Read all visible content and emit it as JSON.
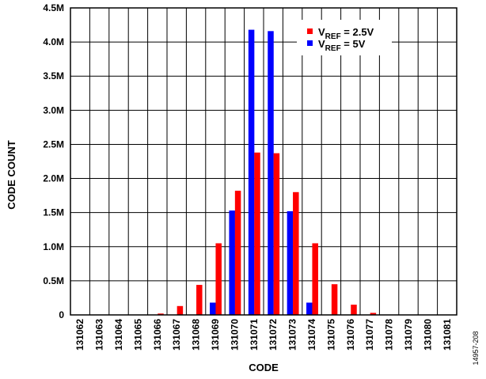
{
  "chart_data": {
    "type": "bar",
    "xlabel": "CODE",
    "ylabel": "CODE COUNT",
    "categories": [
      "131062",
      "131063",
      "131064",
      "131065",
      "131066",
      "131067",
      "131068",
      "131069",
      "131070",
      "131071",
      "131072",
      "131073",
      "131074",
      "131075",
      "131076",
      "131077",
      "131078",
      "131079",
      "131080",
      "131081"
    ],
    "ylim": [
      0,
      4500000
    ],
    "yticks": [
      {
        "value": 0,
        "label": "0"
      },
      {
        "value": 500000,
        "label": "0.5M"
      },
      {
        "value": 1000000,
        "label": "1.0M"
      },
      {
        "value": 1500000,
        "label": "1.5M"
      },
      {
        "value": 2000000,
        "label": "2.0M"
      },
      {
        "value": 2500000,
        "label": "2.5M"
      },
      {
        "value": 3000000,
        "label": "3.0M"
      },
      {
        "value": 3500000,
        "label": "3.5M"
      },
      {
        "value": 4000000,
        "label": "4.0M"
      },
      {
        "value": 4500000,
        "label": "4.5M"
      }
    ],
    "grid": true,
    "legend_position": "top-right",
    "series": [
      {
        "name": "V_REF = 5V",
        "legend": {
          "main": "V",
          "sub": "REF",
          "rest": " = 5V"
        },
        "color": "#0000ff",
        "values": [
          0,
          0,
          0,
          0,
          0,
          0,
          0,
          180000,
          1530000,
          4180000,
          4160000,
          1520000,
          180000,
          0,
          0,
          0,
          0,
          0,
          0,
          0
        ]
      },
      {
        "name": "V_REF = 2.5V",
        "legend": {
          "main": "V",
          "sub": "REF",
          "rest": " = 2.5V"
        },
        "color": "#ff0000",
        "values": [
          0,
          0,
          0,
          5000,
          20000,
          130000,
          440000,
          1050000,
          1820000,
          2380000,
          2370000,
          1800000,
          1050000,
          450000,
          150000,
          30000,
          5000,
          0,
          0,
          0
        ]
      }
    ]
  },
  "figure_id": "14957-208"
}
